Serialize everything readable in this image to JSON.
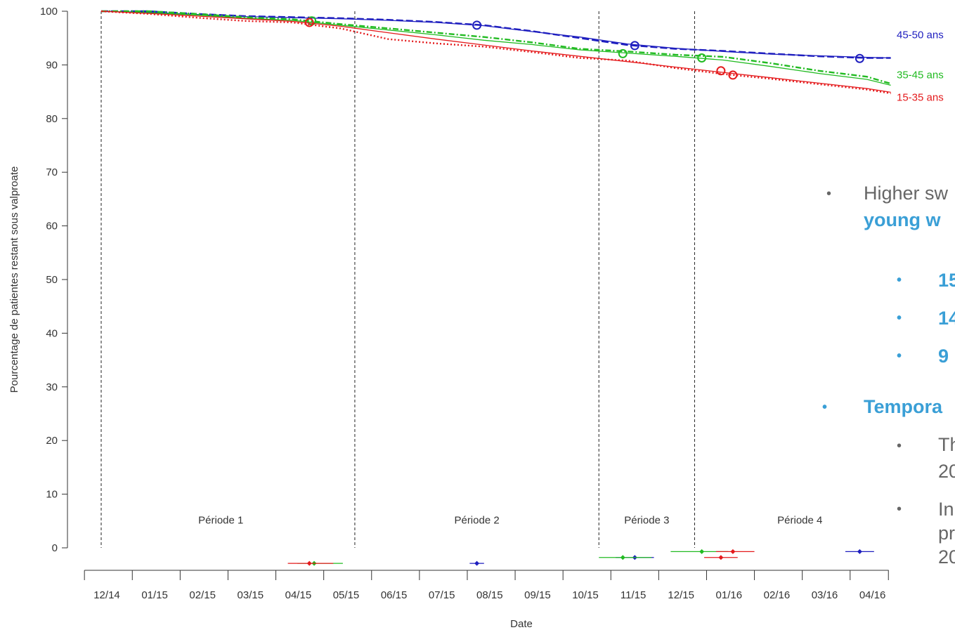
{
  "chart_data": {
    "type": "line",
    "title": "",
    "xlabel": "Date",
    "ylabel": "Pourcentage de patientes restant sous valproate",
    "ylim": [
      0,
      100
    ],
    "yticks": [
      0,
      10,
      20,
      30,
      40,
      50,
      60,
      70,
      80,
      90,
      100
    ],
    "xlim": [
      0,
      16.5
    ],
    "xtick_labels": [
      "12/14",
      "01/15",
      "02/15",
      "03/15",
      "04/15",
      "05/15",
      "06/15",
      "07/15",
      "08/15",
      "09/15",
      "10/15",
      "11/15",
      "12/15",
      "01/16",
      "02/16",
      "03/16",
      "04/16"
    ],
    "grid": false,
    "legend": "inline labels at right end of series",
    "period_boundaries": [
      0,
      5.3,
      10.4,
      12.4
    ],
    "period_labels": [
      {
        "label": "Période 1",
        "x": 2.5
      },
      {
        "label": "Période 2",
        "x": 7.85
      },
      {
        "label": "Période 3",
        "x": 11.4
      },
      {
        "label": "Période 4",
        "x": 14.6
      }
    ],
    "series": [
      {
        "name": "45-50 ans",
        "color": "#1f1fbf",
        "x": [
          0,
          1,
          2,
          3,
          4,
          5,
          6,
          7,
          8,
          9,
          10,
          11,
          12,
          13,
          14,
          15,
          16,
          16.5
        ],
        "smooth": [
          100,
          99.8,
          99.4,
          99.0,
          98.8,
          98.6,
          98.3,
          97.9,
          97.3,
          96.2,
          95.2,
          93.9,
          93.1,
          92.5,
          92.0,
          91.7,
          91.4,
          91.3
        ],
        "observed": [
          100,
          100,
          99.5,
          99.1,
          98.9,
          98.7,
          98.4,
          98.0,
          97.4,
          96.3,
          95.0,
          93.7,
          93.0,
          92.6,
          92.1,
          91.6,
          91.3,
          91.3
        ],
        "breakpoints": [
          {
            "x": 7.85,
            "y": 97.4
          },
          {
            "x": 11.15,
            "y": 93.6
          },
          {
            "x": 15.85,
            "y": 91.2
          }
        ],
        "ci_segments": [
          {
            "y_level": -2.9,
            "x_low": 7.7,
            "x_high": 8.0,
            "x_point": 7.85
          },
          {
            "y_level": -1.8,
            "x_low": 10.75,
            "x_high": 11.55,
            "x_point": 11.15
          },
          {
            "y_level": -0.7,
            "x_low": 15.55,
            "x_high": 16.15,
            "x_point": 15.85
          }
        ]
      },
      {
        "name": "35-45 ans",
        "color": "#22bb22",
        "x": [
          0,
          1,
          2,
          3,
          4,
          5,
          6,
          7,
          8,
          9,
          10,
          11,
          12,
          13,
          14,
          15,
          16,
          16.5
        ],
        "smooth": [
          100,
          99.7,
          99.3,
          98.7,
          98.3,
          97.4,
          96.5,
          95.6,
          94.6,
          93.8,
          92.8,
          92.2,
          91.6,
          90.9,
          89.7,
          88.4,
          87.3,
          86.2
        ],
        "observed": [
          100,
          100,
          99.5,
          98.9,
          98.5,
          97.6,
          96.8,
          96.0,
          95.2,
          94.2,
          93.0,
          92.5,
          91.9,
          91.5,
          90.3,
          88.9,
          87.8,
          86.5
        ],
        "breakpoints": [
          {
            "x": 4.4,
            "y": 98.2
          },
          {
            "x": 10.9,
            "y": 92.1
          },
          {
            "x": 12.55,
            "y": 91.3
          }
        ],
        "ci_segments": [
          {
            "y_level": -2.9,
            "x_low": 4.1,
            "x_high": 5.05,
            "x_point": 4.45
          },
          {
            "y_level": -1.8,
            "x_low": 10.4,
            "x_high": 11.5,
            "x_point": 10.9
          },
          {
            "y_level": -0.7,
            "x_low": 11.9,
            "x_high": 13.1,
            "x_point": 12.55
          }
        ]
      },
      {
        "name": "15-35 ans",
        "color": "#e41a1c",
        "x": [
          0,
          1,
          2,
          3,
          4,
          5,
          6,
          7,
          8,
          9,
          10,
          11,
          12,
          13,
          14,
          15,
          16,
          16.5
        ],
        "smooth": [
          100,
          99.6,
          99.1,
          98.6,
          98.1,
          97.2,
          96.0,
          94.8,
          93.7,
          92.6,
          91.6,
          90.6,
          89.6,
          88.6,
          87.6,
          86.6,
          85.6,
          84.9
        ],
        "observed": [
          100,
          99.5,
          98.8,
          98.2,
          97.9,
          96.8,
          94.8,
          94.0,
          93.4,
          92.4,
          91.3,
          90.8,
          89.4,
          88.3,
          87.4,
          86.4,
          85.4,
          84.7
        ],
        "breakpoints": [
          {
            "x": 4.35,
            "y": 97.9
          },
          {
            "x": 12.95,
            "y": 88.9
          },
          {
            "x": 13.2,
            "y": 88.1
          }
        ],
        "ci_segments": [
          {
            "y_level": -2.9,
            "x_low": 3.9,
            "x_high": 4.85,
            "x_point": 4.35
          },
          {
            "y_level": -1.8,
            "x_low": 12.6,
            "x_high": 13.3,
            "x_point": 12.95
          },
          {
            "y_level": -0.7,
            "x_low": 12.85,
            "x_high": 13.65,
            "x_point": 13.2
          }
        ]
      }
    ]
  },
  "side_text": {
    "b1": "Higher sw",
    "b1_cont": "young w",
    "s1": "15",
    "s2": "14",
    "s3": "9",
    "b2": "Tempora",
    "c1a": "Th",
    "c1b": "20",
    "c2a": "In",
    "c2b": "pr",
    "c2c": "20",
    "bullet_glyph": "•"
  }
}
